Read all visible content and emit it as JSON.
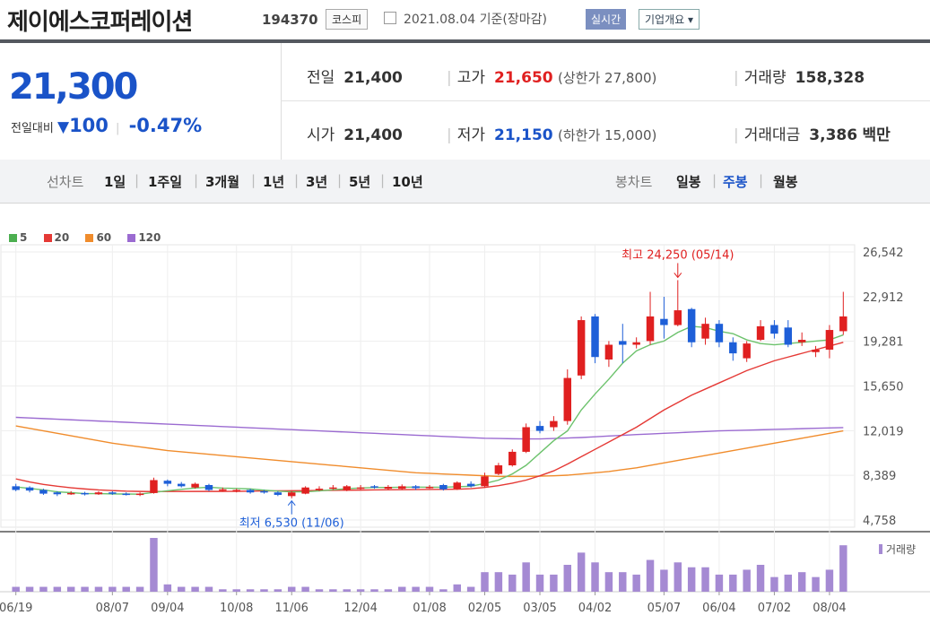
{
  "header": {
    "name": "제이에스코퍼레이션",
    "code": "194370",
    "market": "코스피",
    "date": "2021.08.04 기준(장마감)",
    "realtime": "실시간",
    "company_info": "기업개요 ▾"
  },
  "quote": {
    "price": "21,300",
    "change_label": "전일대비",
    "change_arrow": "▼",
    "change": "100",
    "change_pct": "-0.47%",
    "prev_label": "전일",
    "prev": "21,400",
    "high_label": "고가",
    "high": "21,650",
    "upper_limit": "(상한가 27,800)",
    "volume_label": "거래량",
    "volume": "158,328",
    "open_label": "시가",
    "open": "21,400",
    "low_label": "저가",
    "low": "21,150",
    "lower_limit": "(하한가 15,000)",
    "value_label": "거래대금",
    "value": "3,386",
    "value_unit": "백만"
  },
  "tabs": {
    "line_label": "선차트",
    "line": [
      "1일",
      "1주일",
      "3개월",
      "1년",
      "3년",
      "5년",
      "10년"
    ],
    "candle_label": "봉차트",
    "candle": [
      "일봉",
      "주봉",
      "월봉"
    ],
    "candle_active": "주봉"
  },
  "legend": [
    {
      "label": "5",
      "color": "#4caf50"
    },
    {
      "label": "20",
      "color": "#e53935"
    },
    {
      "label": "60",
      "color": "#f08c2c"
    },
    {
      "label": "120",
      "color": "#9b6bd1"
    }
  ],
  "colors": {
    "up": "#e02020",
    "down": "#1e5fd8",
    "volume": "#a58ad3"
  },
  "chart_data": {
    "type": "candlestick",
    "ylim": [
      4758,
      26542
    ],
    "y_ticks": [
      "26,542",
      "22,912",
      "19,281",
      "15,650",
      "12,019",
      "8,389",
      "4,758"
    ],
    "x_ticks": [
      "06/19",
      "08/07",
      "09/04",
      "10/08",
      "11/06",
      "12/04",
      "01/08",
      "02/05",
      "03/05",
      "04/02",
      "05/07",
      "06/04",
      "07/02",
      "08/04"
    ],
    "x_tick_index": [
      0,
      7,
      11,
      16,
      20,
      25,
      30,
      34,
      38,
      42,
      47,
      51,
      55,
      59
    ],
    "annotation_high": "최고 24,250 (05/14)",
    "annotation_low": "최저 6,530 (11/06)",
    "high_index": 48,
    "low_index": 20,
    "volume_label": "거래량",
    "candles": [
      {
        "o": 7500,
        "c": 7200,
        "h": 7700,
        "l": 7100
      },
      {
        "o": 7400,
        "c": 7150,
        "h": 7500,
        "l": 7000
      },
      {
        "o": 7200,
        "c": 6900,
        "h": 7300,
        "l": 6800
      },
      {
        "o": 7000,
        "c": 6850,
        "h": 7100,
        "l": 6700
      },
      {
        "o": 6900,
        "c": 6950,
        "h": 7100,
        "l": 6800
      },
      {
        "o": 6950,
        "c": 6850,
        "h": 7050,
        "l": 6750
      },
      {
        "o": 6850,
        "c": 7000,
        "h": 7100,
        "l": 6800
      },
      {
        "o": 7000,
        "c": 6900,
        "h": 7100,
        "l": 6800
      },
      {
        "o": 6900,
        "c": 6850,
        "h": 7000,
        "l": 6750
      },
      {
        "o": 6850,
        "c": 6900,
        "h": 7000,
        "l": 6700
      },
      {
        "o": 6950,
        "c": 8000,
        "h": 8200,
        "l": 6900
      },
      {
        "o": 7950,
        "c": 7700,
        "h": 8050,
        "l": 7500
      },
      {
        "o": 7700,
        "c": 7500,
        "h": 7850,
        "l": 7400
      },
      {
        "o": 7400,
        "c": 7700,
        "h": 7800,
        "l": 7300
      },
      {
        "o": 7600,
        "c": 7200,
        "h": 7700,
        "l": 7100
      },
      {
        "o": 7200,
        "c": 7250,
        "h": 7400,
        "l": 7100
      },
      {
        "o": 7100,
        "c": 7200,
        "h": 7300,
        "l": 7000
      },
      {
        "o": 7200,
        "c": 7000,
        "h": 7300,
        "l": 6900
      },
      {
        "o": 7100,
        "c": 7000,
        "h": 7200,
        "l": 6900
      },
      {
        "o": 7000,
        "c": 6800,
        "h": 7100,
        "l": 6700
      },
      {
        "o": 6700,
        "c": 7000,
        "h": 7100,
        "l": 6530
      },
      {
        "o": 6900,
        "c": 7400,
        "h": 7500,
        "l": 6850
      },
      {
        "o": 7200,
        "c": 7300,
        "h": 7500,
        "l": 7100
      },
      {
        "o": 7300,
        "c": 7400,
        "h": 7600,
        "l": 7200
      },
      {
        "o": 7200,
        "c": 7500,
        "h": 7600,
        "l": 7100
      },
      {
        "o": 7300,
        "c": 7400,
        "h": 7600,
        "l": 7200
      },
      {
        "o": 7500,
        "c": 7400,
        "h": 7600,
        "l": 7300
      },
      {
        "o": 7300,
        "c": 7450,
        "h": 7600,
        "l": 7200
      },
      {
        "o": 7300,
        "c": 7500,
        "h": 7650,
        "l": 7200
      },
      {
        "o": 7500,
        "c": 7350,
        "h": 7600,
        "l": 7200
      },
      {
        "o": 7400,
        "c": 7450,
        "h": 7600,
        "l": 7300
      },
      {
        "o": 7600,
        "c": 7250,
        "h": 7700,
        "l": 7150
      },
      {
        "o": 7300,
        "c": 7800,
        "h": 7900,
        "l": 7200
      },
      {
        "o": 7700,
        "c": 7500,
        "h": 7900,
        "l": 7400
      },
      {
        "o": 7500,
        "c": 8300,
        "h": 8600,
        "l": 7400
      },
      {
        "o": 8500,
        "c": 9200,
        "h": 9400,
        "l": 8400
      },
      {
        "o": 9200,
        "c": 10300,
        "h": 10500,
        "l": 9100
      },
      {
        "o": 10300,
        "c": 12300,
        "h": 12600,
        "l": 10200
      },
      {
        "o": 12400,
        "c": 12000,
        "h": 12800,
        "l": 11800
      },
      {
        "o": 12300,
        "c": 12800,
        "h": 13200,
        "l": 12000
      },
      {
        "o": 12800,
        "c": 16300,
        "h": 17000,
        "l": 12500
      },
      {
        "o": 16500,
        "c": 21000,
        "h": 21300,
        "l": 16200
      },
      {
        "o": 21300,
        "c": 18000,
        "h": 21500,
        "l": 17500
      },
      {
        "o": 17800,
        "c": 19000,
        "h": 19300,
        "l": 17200
      },
      {
        "o": 19300,
        "c": 19000,
        "h": 20700,
        "l": 17500
      },
      {
        "o": 19000,
        "c": 19200,
        "h": 19600,
        "l": 18700
      },
      {
        "o": 19300,
        "c": 21300,
        "h": 23300,
        "l": 19000
      },
      {
        "o": 21100,
        "c": 20600,
        "h": 22900,
        "l": 19500
      },
      {
        "o": 20600,
        "c": 21800,
        "h": 24250,
        "l": 20500
      },
      {
        "o": 21900,
        "c": 19200,
        "h": 22000,
        "l": 18800
      },
      {
        "o": 19500,
        "c": 20700,
        "h": 21200,
        "l": 19000
      },
      {
        "o": 20700,
        "c": 19200,
        "h": 21000,
        "l": 18800
      },
      {
        "o": 19200,
        "c": 18300,
        "h": 19600,
        "l": 17700
      },
      {
        "o": 17900,
        "c": 19100,
        "h": 19300,
        "l": 17600
      },
      {
        "o": 19400,
        "c": 20500,
        "h": 21000,
        "l": 19300
      },
      {
        "o": 20600,
        "c": 19900,
        "h": 21000,
        "l": 19500
      },
      {
        "o": 20400,
        "c": 19000,
        "h": 21000,
        "l": 18800
      },
      {
        "o": 19200,
        "c": 19400,
        "h": 20000,
        "l": 18900
      },
      {
        "o": 18400,
        "c": 18600,
        "h": 18900,
        "l": 18000
      },
      {
        "o": 18600,
        "c": 20200,
        "h": 20600,
        "l": 17900
      },
      {
        "o": 20100,
        "c": 21300,
        "h": 23300,
        "l": 19800
      }
    ],
    "volumes": [
      2,
      2,
      2,
      2,
      2,
      2,
      2,
      2,
      2,
      2,
      22,
      3,
      2,
      2,
      2,
      1,
      1,
      1,
      1,
      1,
      2,
      2,
      1,
      1,
      1,
      1,
      1,
      1,
      2,
      2,
      2,
      1,
      3,
      2,
      8,
      8,
      7,
      12,
      7,
      7,
      11,
      16,
      12,
      8,
      8,
      7,
      13,
      9,
      12,
      10,
      10,
      7,
      7,
      9,
      11,
      6,
      7,
      8,
      6,
      9,
      19
    ],
    "volume_max": 22,
    "ma5": [
      7450,
      7320,
      7200,
      7050,
      6980,
      6900,
      6900,
      6880,
      6870,
      6860,
      7000,
      7130,
      7250,
      7360,
      7420,
      7350,
      7320,
      7280,
      7180,
      7100,
      7050,
      7050,
      7120,
      7210,
      7300,
      7360,
      7400,
      7400,
      7420,
      7430,
      7420,
      7420,
      7460,
      7500,
      7720,
      8000,
      8500,
      9200,
      10200,
      11200,
      12000,
      13700,
      15000,
      16200,
      17500,
      18500,
      19000,
      19300,
      20000,
      20500,
      20400,
      20100,
      19900,
      19400,
      19100,
      19000,
      19100,
      19200,
      19300,
      19400,
      19800
    ],
    "ma20": [
      8100,
      7850,
      7650,
      7500,
      7380,
      7280,
      7200,
      7150,
      7100,
      7080,
      7070,
      7080,
      7080,
      7080,
      7080,
      7080,
      7090,
      7100,
      7120,
      7130,
      7140,
      7150,
      7160,
      7170,
      7180,
      7190,
      7200,
      7210,
      7220,
      7230,
      7240,
      7250,
      7260,
      7300,
      7400,
      7550,
      7750,
      8000,
      8350,
      8750,
      9300,
      9900,
      10500,
      11100,
      11700,
      12300,
      13000,
      13700,
      14300,
      14900,
      15400,
      15900,
      16400,
      16900,
      17300,
      17700,
      18000,
      18300,
      18600,
      18900,
      19200
    ],
    "ma60": [
      12400,
      12200,
      12000,
      11800,
      11600,
      11400,
      11200,
      11000,
      10850,
      10700,
      10550,
      10400,
      10300,
      10200,
      10100,
      10000,
      9900,
      9800,
      9700,
      9600,
      9500,
      9400,
      9300,
      9200,
      9100,
      9000,
      8900,
      8800,
      8700,
      8600,
      8550,
      8500,
      8450,
      8400,
      8350,
      8300,
      8300,
      8300,
      8320,
      8350,
      8400,
      8500,
      8600,
      8700,
      8850,
      9000,
      9200,
      9400,
      9600,
      9800,
      10000,
      10200,
      10400,
      10600,
      10800,
      11000,
      11200,
      11400,
      11600,
      11800,
      12000
    ],
    "ma120": [
      13100,
      13050,
      13000,
      12950,
      12900,
      12850,
      12800,
      12750,
      12700,
      12650,
      12600,
      12550,
      12500,
      12450,
      12400,
      12350,
      12300,
      12250,
      12200,
      12150,
      12100,
      12050,
      12000,
      11950,
      11900,
      11850,
      11800,
      11750,
      11700,
      11650,
      11600,
      11550,
      11500,
      11450,
      11400,
      11380,
      11360,
      11350,
      11350,
      11380,
      11420,
      11460,
      11520,
      11580,
      11640,
      11700,
      11750,
      11800,
      11850,
      11900,
      11950,
      12000,
      12030,
      12060,
      12090,
      12120,
      12150,
      12180,
      12210,
      12240,
      12270
    ]
  }
}
